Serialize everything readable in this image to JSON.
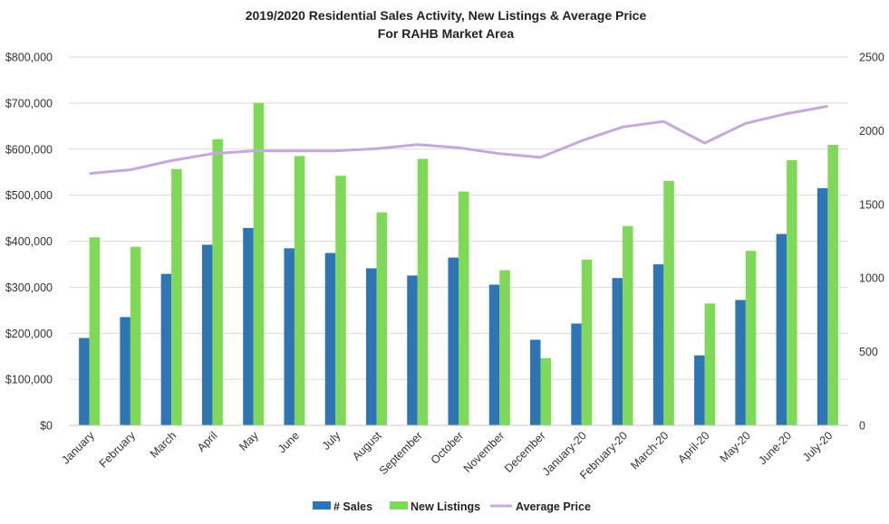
{
  "chart_data": {
    "type": "bar",
    "title": "2019/2020 Residential Sales Activity, New Listings & Average Price",
    "subtitle": "For RAHB Market Area",
    "categories": [
      "January",
      "February",
      "March",
      "April",
      "May",
      "June",
      "July",
      "August",
      "September",
      "October",
      "November",
      "December",
      "January-20",
      "February-20",
      "March-20",
      "April-20",
      "May-20",
      "June-20",
      "July-20"
    ],
    "series": [
      {
        "name": "# Sales",
        "axis": "right",
        "color": "#2e75b6",
        "values": [
          593,
          735,
          1028,
          1226,
          1340,
          1202,
          1170,
          1066,
          1017,
          1139,
          955,
          581,
          691,
          1000,
          1093,
          475,
          851,
          1299,
          1610
        ]
      },
      {
        "name": "New Listings",
        "axis": "right",
        "color": "#7ed957",
        "values": [
          1276,
          1212,
          1740,
          1942,
          2188,
          1828,
          1694,
          1446,
          1809,
          1587,
          1053,
          456,
          1125,
          1353,
          1660,
          827,
          1184,
          1800,
          1904
        ]
      },
      {
        "name": "Average Price",
        "axis": "left",
        "type": "line",
        "color": "#c3a9dc",
        "values": [
          547000,
          555000,
          575000,
          590000,
          596000,
          596000,
          596000,
          601000,
          610000,
          603000,
          590000,
          582000,
          618000,
          648000,
          660000,
          613000,
          656000,
          677000,
          693000
        ]
      }
    ],
    "y_left": {
      "ticks": [
        "$0",
        "$100,000",
        "$200,000",
        "$300,000",
        "$400,000",
        "$500,000",
        "$600,000",
        "$700,000",
        "$800,000"
      ],
      "ylim": [
        0,
        800000
      ]
    },
    "y_right": {
      "ticks": [
        "0",
        "500",
        "1000",
        "1500",
        "2000",
        "2500"
      ],
      "ylim": [
        0,
        2500
      ]
    },
    "grid": true,
    "legend": {
      "placement": "bottom",
      "items": [
        "# Sales",
        "New Listings",
        "Average Price"
      ]
    }
  }
}
